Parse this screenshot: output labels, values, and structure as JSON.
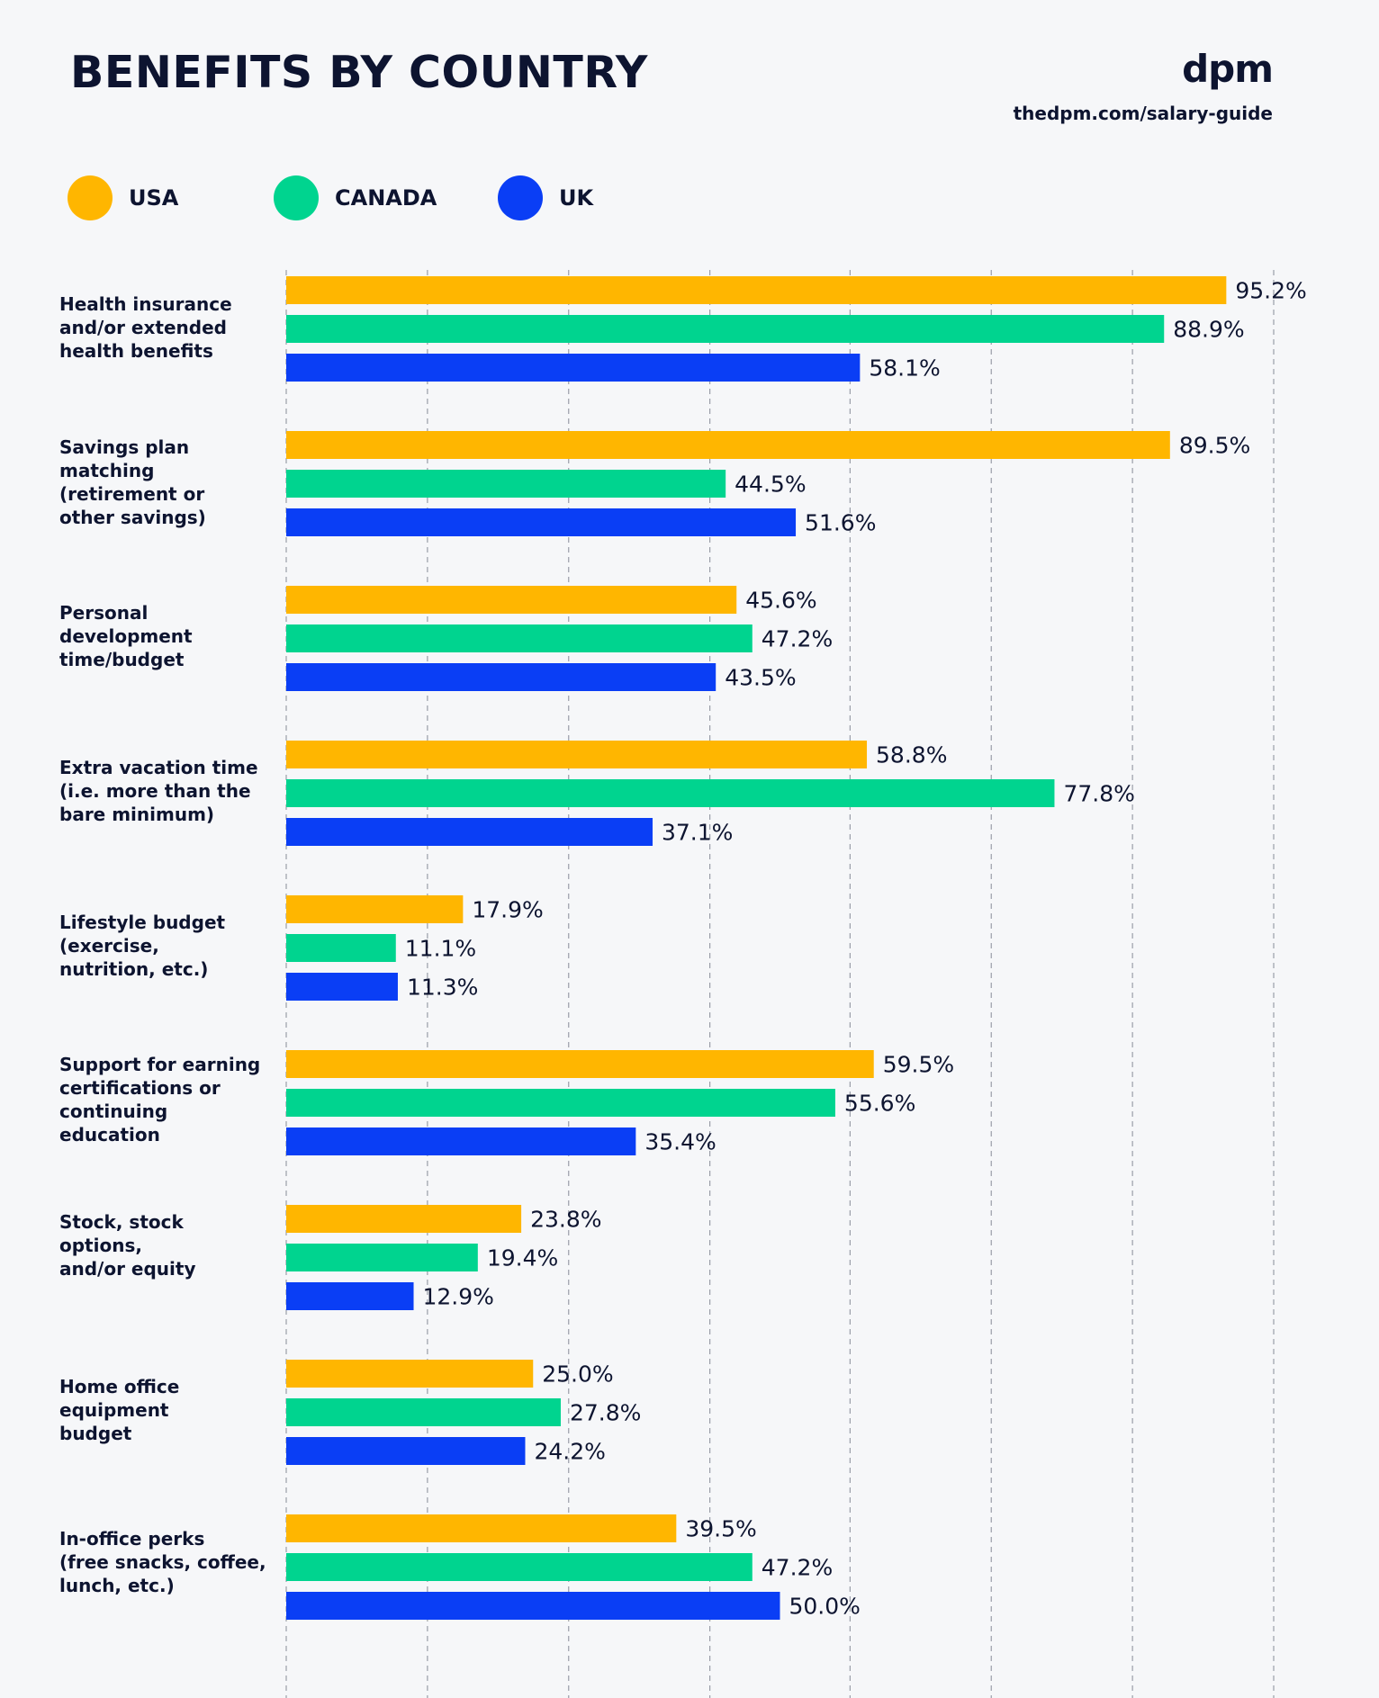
{
  "header": {
    "title": "BENEFITS BY COUNTRY",
    "brand": "dpm",
    "brand_url": "thedpm.com/salary-guide"
  },
  "colors": {
    "USA": "#ffb600",
    "CANADA": "#00d48f",
    "UK": "#0a3ef5",
    "grid": "#9a9ea8",
    "background": "#f6f7f9"
  },
  "legend": [
    {
      "label": "USA",
      "color": "#ffb600"
    },
    {
      "label": "CANADA",
      "color": "#00d48f"
    },
    {
      "label": "UK",
      "color": "#0a3ef5"
    }
  ],
  "chart_data": {
    "type": "bar",
    "orientation": "horizontal",
    "title": "BENEFITS BY COUNTRY",
    "categories": [
      "Health insurance\nand/or extended\nhealth benefits",
      "Savings plan\nmatching\n(retirement or\nother savings)",
      "Personal\ndevelopment\ntime/budget",
      "Extra vacation time\n(i.e. more than the\nbare minimum)",
      "Lifestyle budget\n(exercise,\nnutrition, etc.)",
      "Support for earning\ncertifications or\ncontinuing\neducation",
      "Stock, stock\noptions,\nand/or equity",
      "Home office\nequipment\nbudget",
      "In-office perks\n(free snacks, coffee,\nlunch, etc.)"
    ],
    "series": [
      {
        "name": "USA",
        "values": [
          95.2,
          89.5,
          45.6,
          58.8,
          17.9,
          59.5,
          23.8,
          25.0,
          39.5
        ]
      },
      {
        "name": "CANADA",
        "values": [
          88.9,
          44.5,
          47.2,
          77.8,
          11.1,
          55.6,
          19.4,
          27.8,
          47.2
        ]
      },
      {
        "name": "UK",
        "values": [
          58.1,
          51.6,
          43.5,
          37.1,
          11.3,
          35.4,
          12.9,
          24.2,
          50.0
        ]
      }
    ],
    "value_labels": [
      [
        "95.2%",
        "88.9%",
        "58.1%"
      ],
      [
        "89.5%",
        "44.5%",
        "51.6%"
      ],
      [
        "45.6%",
        "47.2%",
        "43.5%"
      ],
      [
        "58.8%",
        "77.8%",
        "37.1%"
      ],
      [
        "17.9%",
        "11.1%",
        "11.3%"
      ],
      [
        "59.5%",
        "55.6%",
        "35.4%"
      ],
      [
        "23.8%",
        "19.4%",
        "12.9%"
      ],
      [
        "25.0%",
        "27.8%",
        "24.2%"
      ],
      [
        "39.5%",
        "47.2%",
        "50.0%"
      ]
    ],
    "xlim": [
      0,
      100
    ],
    "grid": true,
    "gridlines_at": [
      0,
      14.3,
      28.6,
      42.9,
      57.1,
      71.4,
      85.7,
      100
    ],
    "legend_position": "top-left"
  }
}
